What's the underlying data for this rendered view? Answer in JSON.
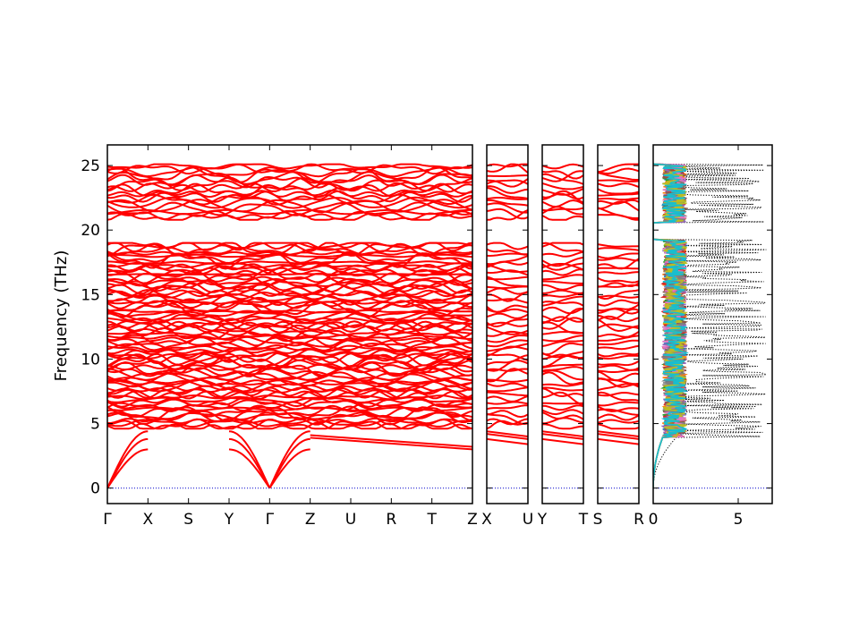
{
  "chart_data": {
    "type": "line",
    "ylabel": "Frequency (THz)",
    "ylim": [
      -1.2,
      26.6
    ],
    "yticks": [
      0,
      5,
      10,
      15,
      20,
      25
    ],
    "band_panels": [
      {
        "name": "panel-1",
        "labels": [
          "Γ",
          "X",
          "S",
          "Y",
          "Γ",
          "Z",
          "U",
          "R",
          "T",
          "Z"
        ]
      },
      {
        "name": "panel-2",
        "labels": [
          "X",
          "U"
        ]
      },
      {
        "name": "panel-3",
        "labels": [
          "Y",
          "T"
        ]
      },
      {
        "name": "panel-4",
        "labels": [
          "S",
          "R"
        ]
      }
    ],
    "band_series": {
      "color": "#ff0000",
      "acoustic_at_gamma": 0,
      "optical_bands_lower": {
        "range": [
          4.0,
          19.0
        ],
        "approx_count": 80
      },
      "gap": [
        19.2,
        20.6
      ],
      "optical_bands_upper": {
        "range": [
          20.6,
          25.1
        ],
        "approx_count": 18
      }
    },
    "dos_panel": {
      "xlim": [
        0,
        7
      ],
      "xticks": [
        0,
        5
      ],
      "total_dos_style": "black dotted",
      "projected_colors": [
        "#1f77b4",
        "#ff7f0e",
        "#2ca02c",
        "#d62728",
        "#9467bd",
        "#8c564b",
        "#e377c2",
        "#7f7f7f",
        "#bcbd22",
        "#17becf"
      ]
    },
    "zero_line_color": "#0000cc",
    "grid": false,
    "legend": "none"
  }
}
